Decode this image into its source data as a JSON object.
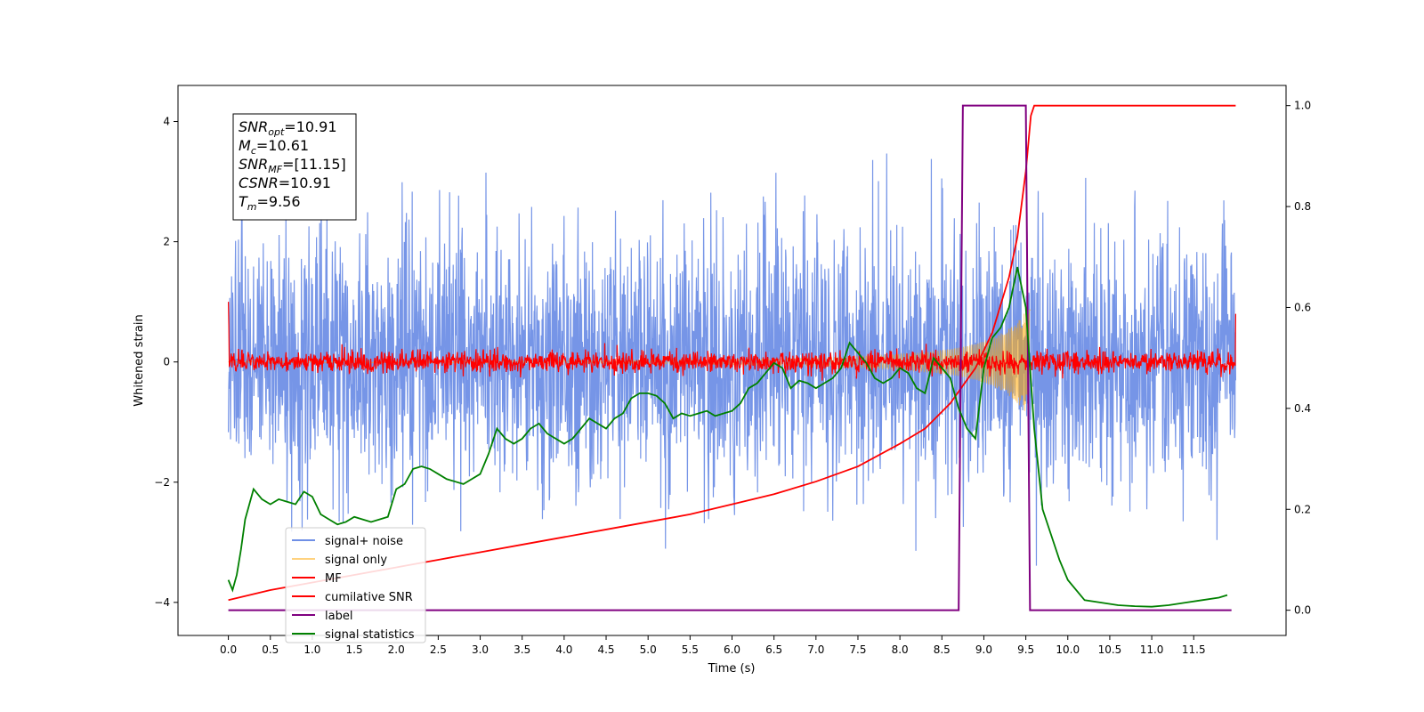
{
  "chart_data": {
    "type": "line",
    "xlabel": "Time (s)",
    "ylabel_left": "Whitened strain",
    "ylabel_right": "",
    "xlim": [
      -0.6,
      12.6
    ],
    "ylim_left": [
      -4.55,
      4.6
    ],
    "ylim_right": [
      -0.05,
      1.04
    ],
    "x_ticks": [
      "0.0",
      "0.5",
      "1.0",
      "1.5",
      "2.0",
      "2.5",
      "3.0",
      "3.5",
      "4.0",
      "4.5",
      "5.0",
      "5.5",
      "6.0",
      "6.5",
      "7.0",
      "7.5",
      "8.0",
      "8.5",
      "9.0",
      "9.5",
      "10.0",
      "10.5",
      "11.0",
      "11.5"
    ],
    "y_ticks_left": [
      "4",
      "2",
      "0",
      "−2",
      "−4"
    ],
    "y_ticks_right": [
      "1.0",
      "0.8",
      "0.6",
      "0.4",
      "0.2",
      "0.0"
    ],
    "grid": false,
    "legend_position": "lower-left",
    "annotation": {
      "lines": [
        {
          "name": "SNR",
          "sub": "opt",
          "value": "=10.91"
        },
        {
          "name": "M",
          "sub": "c",
          "value": "=10.61"
        },
        {
          "name": "SNR",
          "sub": "MF",
          "value": "=[11.15]"
        },
        {
          "name": "CSNR",
          "sub": "",
          "value": "=10.91"
        },
        {
          "name": "T",
          "sub": "m",
          "value": "=9.56"
        }
      ]
    },
    "series": [
      {
        "name": "signal+ noise",
        "color": "#4169e1",
        "axis": "left",
        "kind": "noise",
        "x_range": [
          0.0,
          12.0
        ],
        "amplitude_std": 1.0
      },
      {
        "name": "signal only",
        "color": "#ffa500",
        "axis": "left",
        "kind": "chirp",
        "x_range": [
          0.0,
          9.56
        ]
      },
      {
        "name": "MF",
        "color": "#ff0000",
        "axis": "left",
        "kind": "mf-output",
        "x_range": [
          0.0,
          12.0
        ]
      },
      {
        "name": "cumilative SNR",
        "color": "#ff0000",
        "axis": "right",
        "x": [
          0.0,
          0.5,
          1.0,
          1.5,
          2.0,
          2.5,
          3.0,
          3.5,
          4.0,
          4.5,
          5.0,
          5.5,
          6.0,
          6.5,
          7.0,
          7.5,
          8.0,
          8.3,
          8.6,
          8.9,
          9.1,
          9.3,
          9.4,
          9.5,
          9.56,
          9.6,
          12.0
        ],
        "y": [
          0.02,
          0.04,
          0.055,
          0.07,
          0.085,
          0.1,
          0.115,
          0.13,
          0.145,
          0.16,
          0.175,
          0.19,
          0.21,
          0.23,
          0.255,
          0.285,
          0.33,
          0.36,
          0.41,
          0.48,
          0.55,
          0.66,
          0.74,
          0.87,
          0.98,
          1.0,
          1.0
        ]
      },
      {
        "name": "label",
        "color": "#800080",
        "axis": "right",
        "x": [
          0.0,
          8.7,
          8.75,
          9.5,
          9.55,
          11.95
        ],
        "y": [
          0.0,
          0.0,
          1.0,
          1.0,
          0.0,
          0.0
        ]
      },
      {
        "name": "signal statistics",
        "color": "#008000",
        "axis": "right",
        "x": [
          0.0,
          0.05,
          0.1,
          0.15,
          0.2,
          0.25,
          0.3,
          0.4,
          0.5,
          0.6,
          0.7,
          0.8,
          0.9,
          1.0,
          1.1,
          1.2,
          1.3,
          1.4,
          1.5,
          1.6,
          1.7,
          1.8,
          1.9,
          2.0,
          2.1,
          2.2,
          2.3,
          2.4,
          2.5,
          2.6,
          2.7,
          2.8,
          2.9,
          3.0,
          3.1,
          3.2,
          3.3,
          3.4,
          3.5,
          3.6,
          3.7,
          3.8,
          3.9,
          4.0,
          4.1,
          4.2,
          4.3,
          4.4,
          4.5,
          4.6,
          4.7,
          4.8,
          4.9,
          5.0,
          5.1,
          5.2,
          5.3,
          5.4,
          5.5,
          5.6,
          5.7,
          5.8,
          5.9,
          6.0,
          6.1,
          6.2,
          6.3,
          6.4,
          6.5,
          6.6,
          6.7,
          6.8,
          6.9,
          7.0,
          7.1,
          7.2,
          7.3,
          7.4,
          7.5,
          7.6,
          7.7,
          7.8,
          7.9,
          8.0,
          8.1,
          8.2,
          8.3,
          8.4,
          8.5,
          8.6,
          8.7,
          8.8,
          8.9,
          9.0,
          9.1,
          9.2,
          9.3,
          9.4,
          9.5,
          9.6,
          9.7,
          9.8,
          9.9,
          10.0,
          10.2,
          10.4,
          10.6,
          10.8,
          11.0,
          11.2,
          11.4,
          11.6,
          11.8,
          11.9
        ],
        "y": [
          0.06,
          0.04,
          0.07,
          0.12,
          0.18,
          0.21,
          0.24,
          0.22,
          0.21,
          0.22,
          0.215,
          0.21,
          0.235,
          0.225,
          0.19,
          0.18,
          0.17,
          0.175,
          0.185,
          0.18,
          0.175,
          0.18,
          0.185,
          0.24,
          0.25,
          0.28,
          0.285,
          0.28,
          0.27,
          0.26,
          0.255,
          0.25,
          0.26,
          0.27,
          0.31,
          0.36,
          0.34,
          0.33,
          0.34,
          0.36,
          0.37,
          0.35,
          0.34,
          0.33,
          0.34,
          0.36,
          0.38,
          0.37,
          0.36,
          0.38,
          0.39,
          0.42,
          0.43,
          0.43,
          0.425,
          0.41,
          0.38,
          0.39,
          0.385,
          0.39,
          0.395,
          0.385,
          0.39,
          0.395,
          0.41,
          0.44,
          0.45,
          0.47,
          0.49,
          0.48,
          0.44,
          0.455,
          0.45,
          0.44,
          0.45,
          0.46,
          0.48,
          0.53,
          0.51,
          0.49,
          0.46,
          0.45,
          0.46,
          0.48,
          0.47,
          0.44,
          0.43,
          0.5,
          0.48,
          0.46,
          0.4,
          0.36,
          0.34,
          0.48,
          0.54,
          0.56,
          0.6,
          0.68,
          0.6,
          0.36,
          0.2,
          0.15,
          0.1,
          0.06,
          0.02,
          0.015,
          0.01,
          0.008,
          0.007,
          0.01,
          0.015,
          0.02,
          0.025,
          0.03
        ]
      }
    ]
  }
}
